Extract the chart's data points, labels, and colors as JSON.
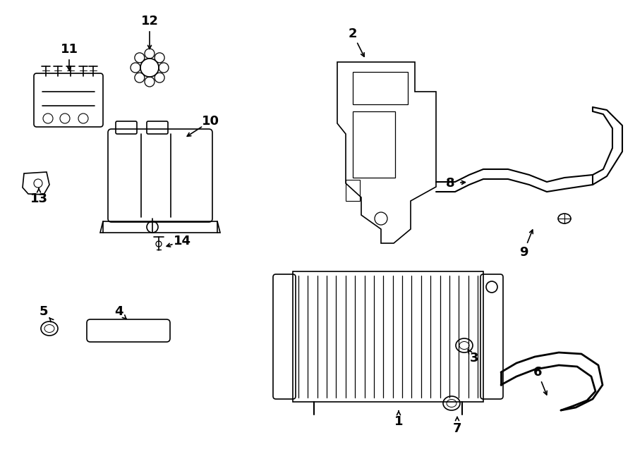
{
  "bg_color": "#ffffff",
  "line_color": "#000000",
  "fig_width": 9.0,
  "fig_height": 6.61,
  "dpi": 100,
  "callouts": [
    [
      "1",
      565,
      598,
      565,
      575
    ],
    [
      "2",
      500,
      48,
      520,
      88
    ],
    [
      "3",
      672,
      508,
      660,
      492
    ],
    [
      "4",
      168,
      442,
      185,
      458
    ],
    [
      "5",
      62,
      442,
      72,
      453
    ],
    [
      "6",
      762,
      528,
      778,
      568
    ],
    [
      "7",
      648,
      608,
      648,
      583
    ],
    [
      "8",
      638,
      260,
      668,
      258
    ],
    [
      "9",
      742,
      358,
      758,
      318
    ],
    [
      "10",
      298,
      172,
      258,
      198
    ],
    [
      "11",
      98,
      70,
      98,
      108
    ],
    [
      "12",
      212,
      30,
      212,
      78
    ],
    [
      "13",
      55,
      282,
      55,
      262
    ],
    [
      "14",
      258,
      342,
      228,
      352
    ]
  ]
}
